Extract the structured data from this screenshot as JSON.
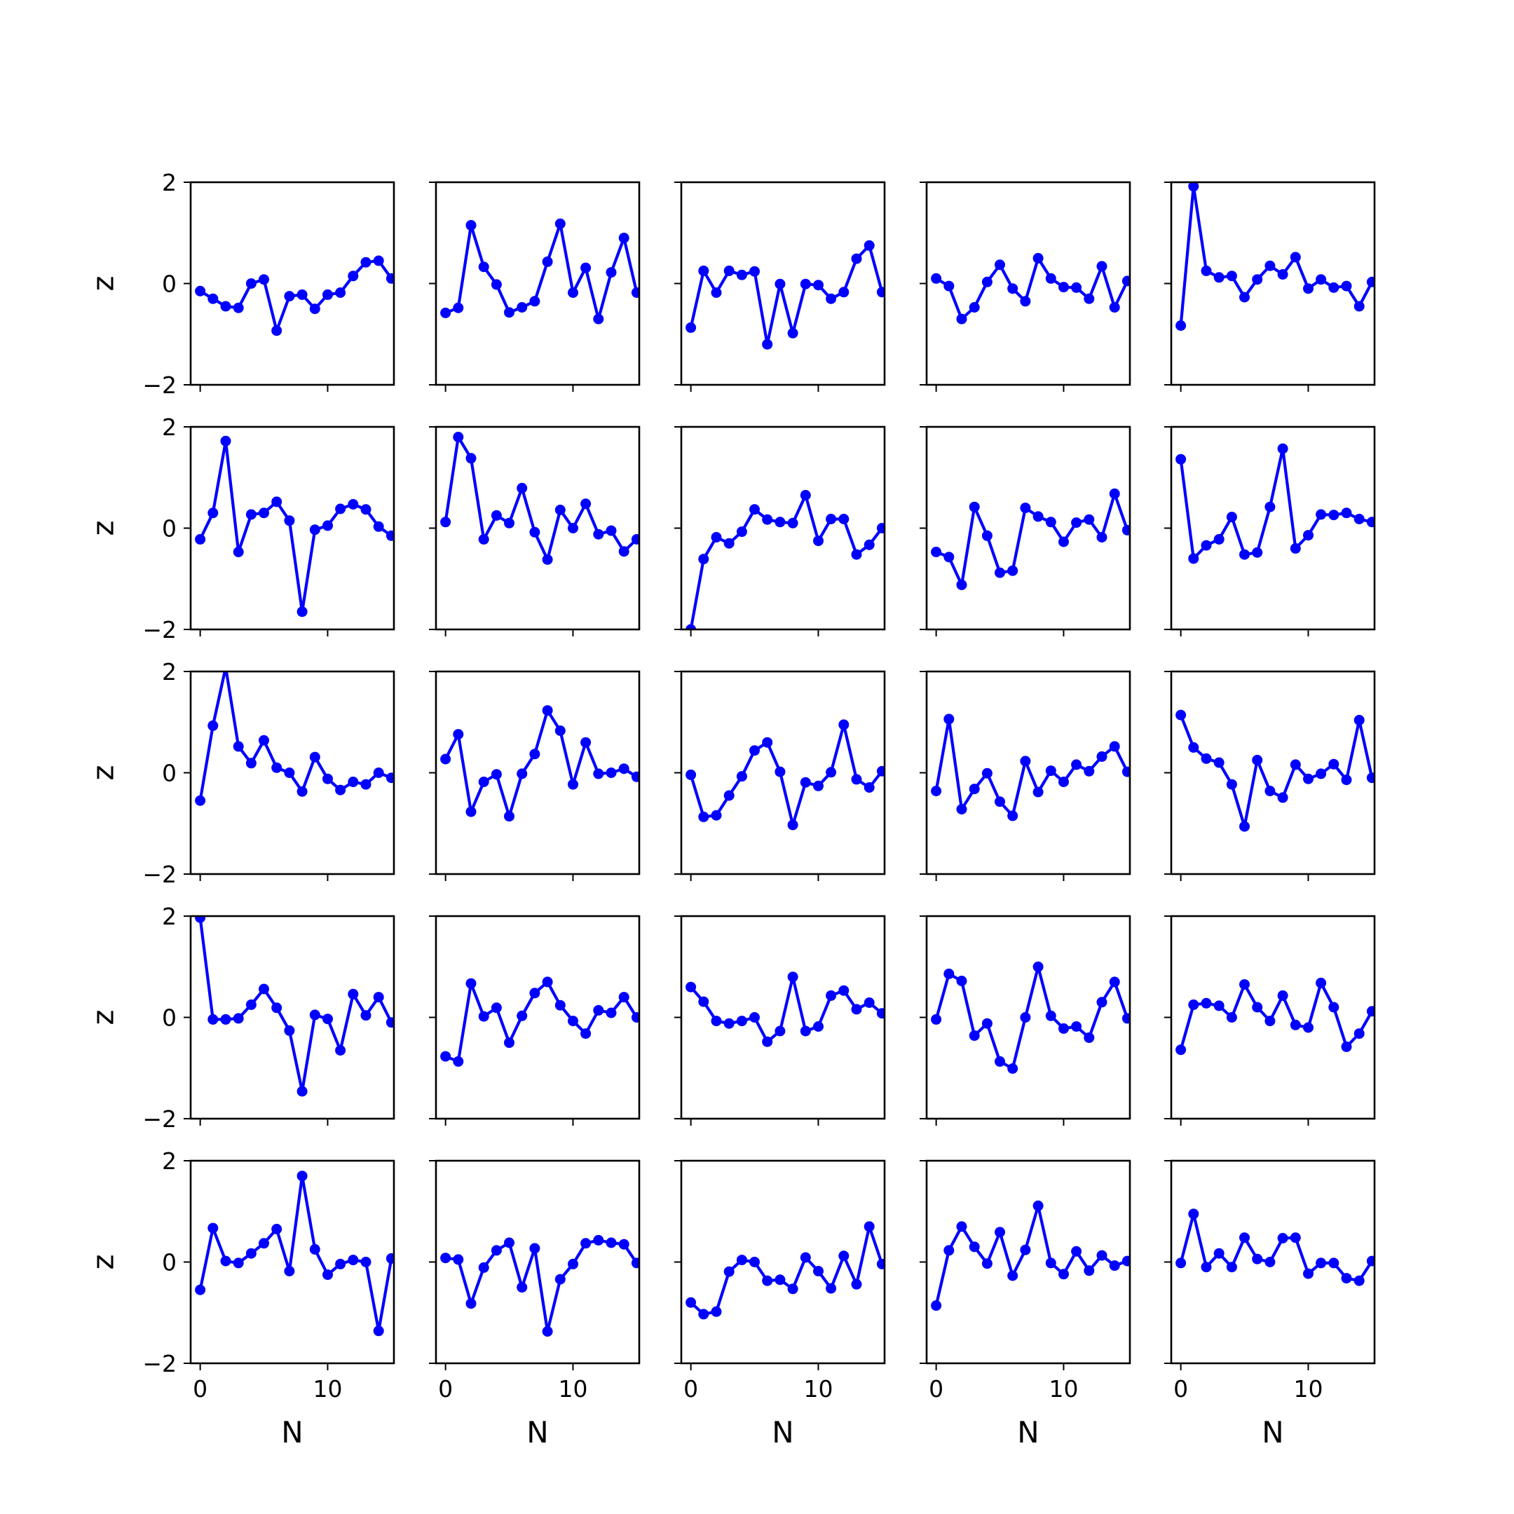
{
  "chart_data": {
    "type": "line",
    "layout": "5x5 grid of small multiples, shared x and y axes",
    "xlabel": "N",
    "ylabel": "z",
    "x": [
      0,
      1,
      2,
      3,
      4,
      5,
      6,
      7,
      8,
      9,
      10,
      11,
      12,
      13,
      14,
      15
    ],
    "xlim": [
      -0.75,
      15.2
    ],
    "ylim": [
      -2,
      2
    ],
    "xticks": [
      0,
      10
    ],
    "yticks": [
      -2,
      0,
      2
    ],
    "tick_labels": {
      "x": [
        "0",
        "10"
      ],
      "y": [
        "−2",
        "0",
        "2"
      ]
    },
    "line_color": "#0000ff",
    "marker": "circle",
    "grid": false,
    "panels": [
      [
        -0.15,
        -0.3,
        -0.45,
        -0.48,
        0.0,
        0.08,
        -0.93,
        -0.25,
        -0.22,
        -0.5,
        -0.22,
        -0.18,
        0.15,
        0.42,
        0.45,
        0.1
      ],
      [
        -0.58,
        -0.48,
        1.15,
        0.33,
        -0.02,
        -0.57,
        -0.47,
        -0.35,
        0.43,
        1.18,
        -0.18,
        0.31,
        -0.7,
        0.22,
        0.9,
        -0.18
      ],
      [
        -0.87,
        0.25,
        -0.18,
        0.25,
        0.17,
        0.24,
        -1.2,
        -0.01,
        -0.98,
        -0.01,
        -0.03,
        -0.3,
        -0.17,
        0.49,
        0.75,
        -0.17
      ],
      [
        0.1,
        -0.05,
        -0.7,
        -0.47,
        0.03,
        0.37,
        -0.1,
        -0.35,
        0.5,
        0.1,
        -0.07,
        -0.08,
        -0.3,
        0.34,
        -0.47,
        0.05
      ],
      [
        -0.83,
        1.92,
        0.25,
        0.12,
        0.15,
        -0.27,
        0.08,
        0.35,
        0.18,
        0.52,
        -0.1,
        0.08,
        -0.08,
        -0.05,
        -0.45,
        0.03
      ],
      [
        -0.22,
        0.3,
        1.72,
        -0.47,
        0.27,
        0.3,
        0.52,
        0.15,
        -1.65,
        -0.03,
        0.05,
        0.38,
        0.47,
        0.37,
        0.03,
        -0.15
      ],
      [
        0.12,
        1.8,
        1.38,
        -0.22,
        0.25,
        0.1,
        0.79,
        -0.08,
        -0.62,
        0.36,
        0.0,
        0.48,
        -0.12,
        -0.05,
        -0.46,
        -0.22
      ],
      [
        -2.0,
        -0.61,
        -0.18,
        -0.3,
        -0.07,
        0.37,
        0.17,
        0.12,
        0.1,
        0.65,
        -0.25,
        0.18,
        0.18,
        -0.52,
        -0.33,
        0.0
      ],
      [
        -0.47,
        -0.57,
        -1.12,
        0.42,
        -0.15,
        -0.88,
        -0.84,
        0.4,
        0.23,
        0.12,
        -0.27,
        0.11,
        0.17,
        -0.18,
        0.68,
        -0.04
      ],
      [
        1.36,
        -0.6,
        -0.34,
        -0.22,
        0.22,
        -0.52,
        -0.48,
        0.42,
        1.57,
        -0.4,
        -0.14,
        0.27,
        0.26,
        0.3,
        0.18,
        0.12
      ],
      [
        -0.55,
        0.93,
        2.08,
        0.52,
        0.19,
        0.64,
        0.1,
        0.0,
        -0.37,
        0.31,
        -0.12,
        -0.34,
        -0.18,
        -0.23,
        0.0,
        -0.1
      ],
      [
        0.27,
        0.76,
        -0.77,
        -0.18,
        -0.03,
        -0.86,
        -0.02,
        0.37,
        1.23,
        0.83,
        -0.23,
        0.6,
        -0.02,
        0.0,
        0.08,
        -0.08
      ],
      [
        -0.04,
        -0.87,
        -0.84,
        -0.45,
        -0.07,
        0.44,
        0.6,
        0.02,
        -1.03,
        -0.19,
        -0.26,
        0.01,
        0.95,
        -0.13,
        -0.29,
        0.03
      ],
      [
        -0.36,
        1.06,
        -0.72,
        -0.32,
        -0.01,
        -0.57,
        -0.85,
        0.23,
        -0.38,
        0.04,
        -0.18,
        0.16,
        0.03,
        0.32,
        0.52,
        0.02
      ],
      [
        1.14,
        0.5,
        0.28,
        0.2,
        -0.23,
        -1.06,
        0.25,
        -0.36,
        -0.49,
        0.16,
        -0.12,
        -0.02,
        0.17,
        -0.14,
        1.04,
        -0.1
      ],
      [
        1.97,
        -0.04,
        -0.04,
        -0.02,
        0.25,
        0.56,
        0.19,
        -0.26,
        -1.46,
        0.05,
        -0.03,
        -0.65,
        0.46,
        0.04,
        0.4,
        -0.1
      ],
      [
        -0.77,
        -0.87,
        0.67,
        0.02,
        0.19,
        -0.5,
        0.03,
        0.48,
        0.7,
        0.24,
        -0.07,
        -0.32,
        0.14,
        0.09,
        0.4,
        0.0
      ],
      [
        0.6,
        0.31,
        -0.07,
        -0.12,
        -0.07,
        0.0,
        -0.48,
        -0.27,
        0.8,
        -0.27,
        -0.18,
        0.43,
        0.53,
        0.16,
        0.29,
        0.08
      ],
      [
        -0.04,
        0.86,
        0.72,
        -0.36,
        -0.12,
        -0.87,
        -1.01,
        0.0,
        1.0,
        0.03,
        -0.22,
        -0.18,
        -0.4,
        0.3,
        0.7,
        -0.02
      ],
      [
        -0.64,
        0.25,
        0.28,
        0.23,
        0.0,
        0.65,
        0.2,
        -0.07,
        0.43,
        -0.15,
        -0.2,
        0.68,
        0.2,
        -0.58,
        -0.32,
        0.12
      ],
      [
        -0.55,
        0.67,
        0.02,
        -0.02,
        0.17,
        0.37,
        0.65,
        -0.18,
        1.7,
        0.25,
        -0.25,
        -0.04,
        0.04,
        0.0,
        -1.36,
        0.07
      ],
      [
        0.08,
        0.05,
        -0.82,
        -0.11,
        0.23,
        0.38,
        -0.5,
        0.27,
        -1.37,
        -0.34,
        -0.04,
        0.37,
        0.43,
        0.38,
        0.35,
        -0.02
      ],
      [
        -0.8,
        -1.03,
        -0.98,
        -0.19,
        0.04,
        0.0,
        -0.37,
        -0.35,
        -0.53,
        0.09,
        -0.18,
        -0.52,
        0.12,
        -0.44,
        0.7,
        -0.04
      ],
      [
        -0.86,
        0.23,
        0.7,
        0.3,
        -0.03,
        0.59,
        -0.27,
        0.24,
        1.11,
        -0.02,
        -0.24,
        0.21,
        -0.17,
        0.13,
        -0.07,
        0.02
      ],
      [
        -0.02,
        0.95,
        -0.1,
        0.17,
        -0.1,
        0.48,
        0.06,
        0.0,
        0.47,
        0.48,
        -0.23,
        -0.02,
        -0.02,
        -0.32,
        -0.37,
        0.02
      ]
    ]
  }
}
